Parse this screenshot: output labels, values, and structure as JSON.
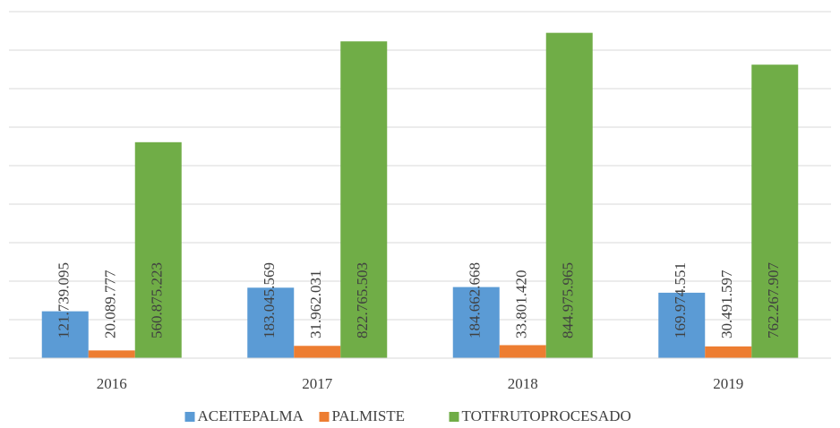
{
  "chart_data": {
    "type": "bar",
    "categories": [
      "2016",
      "2017",
      "2018",
      "2019"
    ],
    "series": [
      {
        "name": "ACEITEPALMA",
        "color": "#5b9bd5",
        "values": [
          121739095,
          183045569,
          184662668,
          169974551
        ],
        "value_labels": [
          "121.739.095",
          "183.045.569",
          "184.662.668",
          "169.974.551"
        ]
      },
      {
        "name": "PALMISTE",
        "color": "#ed7d31",
        "values": [
          20089777,
          31962031,
          33801420,
          30491597
        ],
        "value_labels": [
          "20.089.777",
          "31.962.031",
          "33.801.420",
          "30.491.597"
        ]
      },
      {
        "name": "TOTFRUTOPROCESADO",
        "color": "#70ad47",
        "values": [
          560875223,
          822765503,
          844975965,
          762267907
        ],
        "value_labels": [
          "560.875.223",
          "822.765.503",
          "844.975.965",
          "762.267.907"
        ]
      }
    ],
    "ylim": [
      0,
      900000000
    ],
    "yticks": [
      0,
      100000000,
      200000000,
      300000000,
      400000000,
      500000000,
      600000000,
      700000000,
      800000000,
      900000000
    ],
    "grid": true,
    "legend": "bottom"
  }
}
